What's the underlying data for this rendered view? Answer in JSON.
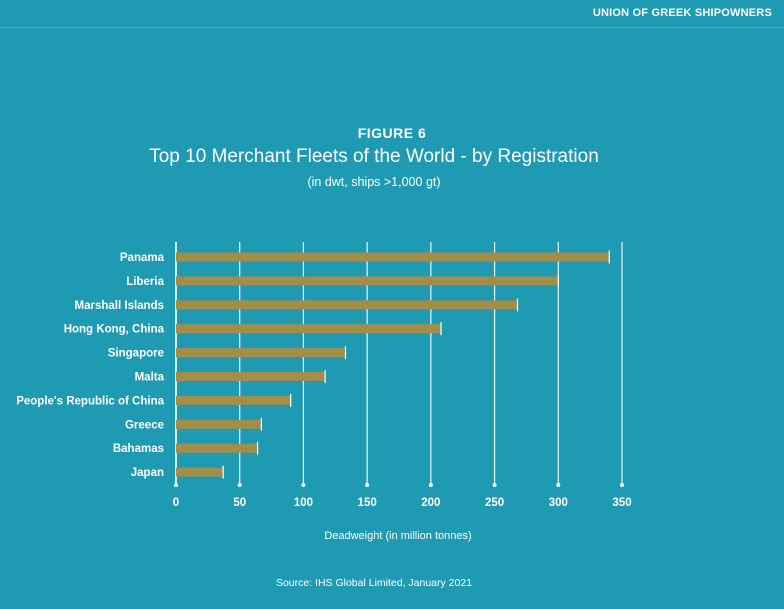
{
  "header": {
    "organization": "UNION OF GREEK SHIPOWNERS"
  },
  "figure": {
    "label": "FIGURE 6",
    "title": "Top 10 Merchant Fleets of the World - by Registration",
    "subtitle": "(in dwt, ships >1,000 gt)",
    "source": "Source: IHS Global Limited, January 2021"
  },
  "colors": {
    "background": "#1f9ab3",
    "bar": "#a38d4a",
    "text": "#ffffff"
  },
  "chart_data": {
    "type": "bar",
    "orientation": "horizontal",
    "categories": [
      "Panama",
      "Liberia",
      "Marshall Islands",
      "Hong Kong, China",
      "Singapore",
      "Malta",
      "People's Republic of China",
      "Greece",
      "Bahamas",
      "Japan"
    ],
    "values": [
      340,
      300,
      268,
      208,
      133,
      117,
      90,
      67,
      64,
      37
    ],
    "xlabel": "Deadweight (in million tonnes)",
    "ylabel": "",
    "xlim": [
      0,
      350
    ],
    "xticks": [
      0,
      50,
      100,
      150,
      200,
      250,
      300,
      350
    ],
    "grid": true
  }
}
